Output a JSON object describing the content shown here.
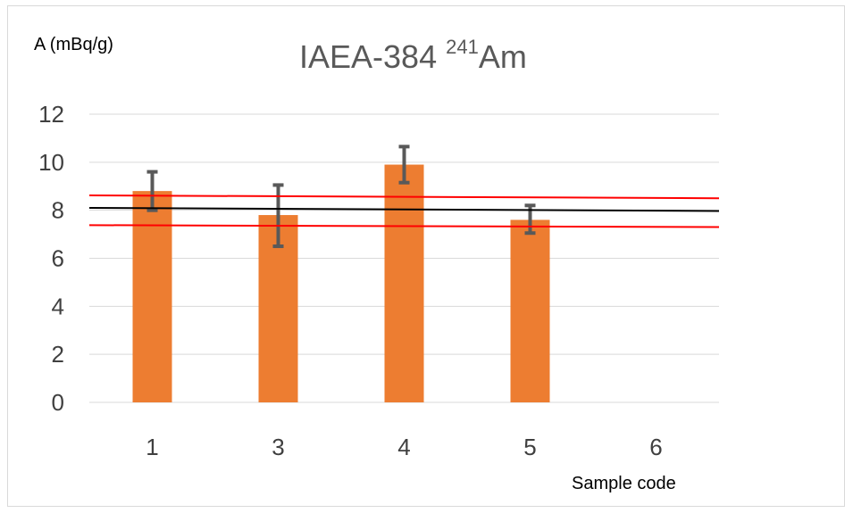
{
  "chart_data": {
    "type": "bar",
    "title": "IAEA-384",
    "title_isotope_mass": "241",
    "title_element": "Am",
    "ylabel": "A (mBq/g)",
    "xlabel": "Sample code",
    "categories": [
      "1",
      "3",
      "4",
      "5",
      "6"
    ],
    "values": [
      8.8,
      7.8,
      9.9,
      7.6,
      null
    ],
    "error_bars": [
      {
        "low": 8.0,
        "high": 9.6
      },
      {
        "low": 6.5,
        "high": 9.05
      },
      {
        "low": 9.15,
        "high": 10.65
      },
      {
        "low": 7.05,
        "high": 8.2
      },
      null
    ],
    "ylim": [
      0,
      12
    ],
    "yticks": [
      0,
      2,
      4,
      6,
      8,
      10,
      12
    ],
    "grid": true,
    "reference_lines": [
      {
        "role": "mean",
        "color": "#000000",
        "y_start": 8.1,
        "y_end": 7.97
      },
      {
        "role": "upper",
        "color": "#ff0000",
        "y_start": 8.62,
        "y_end": 8.5
      },
      {
        "role": "lower",
        "color": "#ff0000",
        "y_start": 7.38,
        "y_end": 7.3
      }
    ],
    "colors": {
      "bar": "#ed7d31",
      "error_bar": "#595959",
      "grid": "#d9d9d9",
      "axis": "#d9d9d9"
    }
  }
}
